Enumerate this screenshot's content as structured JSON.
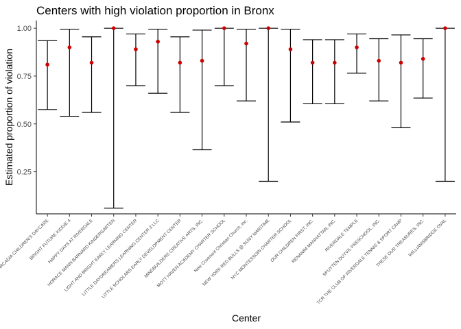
{
  "chart_data": {
    "type": "errorbar",
    "title": "Centers with high violation proportion in Bronx",
    "xlabel": "Center",
    "ylabel": "Estimated proportion of violation",
    "ylim": [
      0.03,
      1.04
    ],
    "yticks": [
      0.25,
      0.5,
      0.75,
      1.0
    ],
    "ytick_labels": [
      "0.25",
      "0.50",
      "0.75",
      "1.00"
    ],
    "grid": false,
    "point_color": "#cc0000",
    "errorbar_color": "#000000",
    "categories": [
      "ARCADIA CHILDREN'S DAYCARE",
      "BRIGHT FUTURE KIDDIE 4",
      "HAPPY DAYS AT RIVERDALE",
      "HORACE MANN BARNARD KINDERGARTEN",
      "LIGHT AND BRIGHT EARLY LEARNING CENTER",
      "LITTLE DAYDREAMERS LEARNING CENTER 3 LLC",
      "LITTLE SCHOLARS EARLY DEVELOPMENT CENTER",
      "MINDBUILDERS CREATIVE ARTS, INC.",
      "MOTT HAVEN ACADEMY CHARTER SCHOOL",
      "New Covenant Christian Church, Inc.",
      "NEW YORK RED BULLS @ SUNY MARITIME",
      "NYC MONTESSORI CHARTER SCHOOL",
      "OUR CHILDREN FIRST, INC.",
      "RENANIM MANHATTAN, INC.",
      "RIVERDALE TEMPLE",
      "SPUYTEN DUYVIL PRESCHOOL, INC.",
      "TCR THE CLUB OF RIVERDALE TENNIS & SPORT CAMP",
      "THESE OUR TREASURES, INC.",
      "WILLIAMSBRIDGE OVAL"
    ],
    "estimate": [
      0.81,
      0.9,
      0.82,
      1.0,
      0.89,
      0.93,
      0.82,
      0.83,
      1.0,
      0.92,
      1.0,
      0.89,
      0.82,
      0.82,
      0.9,
      0.83,
      0.82,
      0.84,
      1.0
    ],
    "lower": [
      0.575,
      0.54,
      0.56,
      0.06,
      0.7,
      0.66,
      0.56,
      0.365,
      0.7,
      0.62,
      0.2,
      0.51,
      0.605,
      0.605,
      0.765,
      0.62,
      0.48,
      0.635,
      0.2
    ],
    "upper": [
      0.935,
      0.995,
      0.955,
      1.0,
      0.97,
      0.995,
      0.955,
      0.99,
      1.0,
      0.995,
      1.0,
      0.995,
      0.94,
      0.94,
      0.97,
      0.945,
      0.965,
      0.945,
      1.0
    ]
  }
}
